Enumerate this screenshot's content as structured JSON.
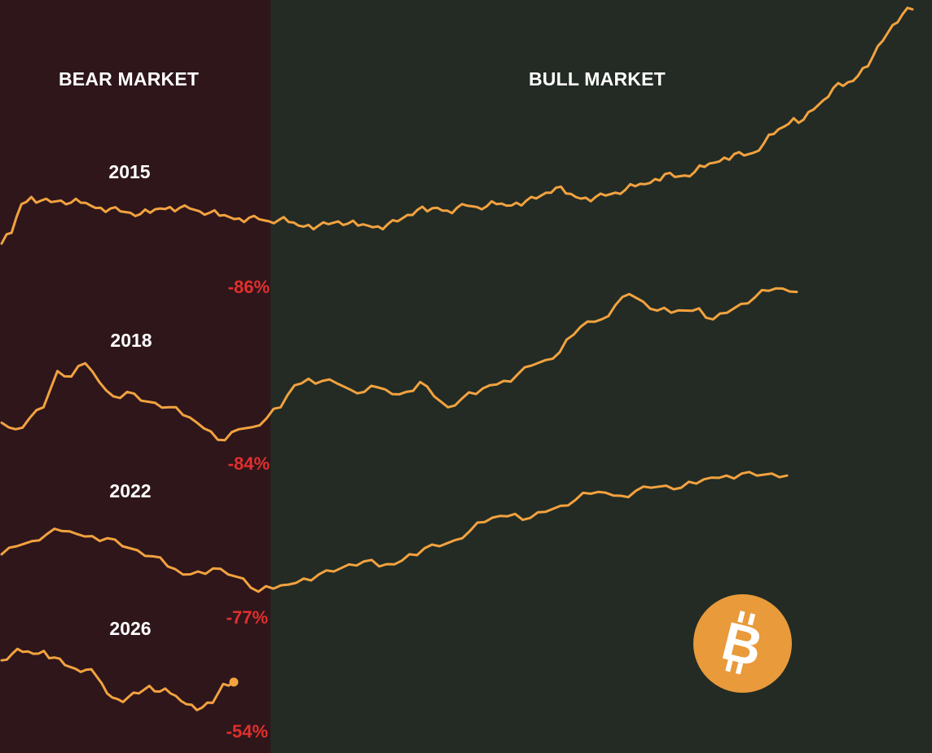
{
  "labels": {
    "bear": "BEAR MARKET",
    "bull": "BULL MARKET"
  },
  "logo": {
    "icon": "bitcoin-icon",
    "color": "#e99a3a",
    "glyph": "B"
  },
  "colors": {
    "bear_bg": "#2e161b",
    "bull_bg": "#232b24",
    "line": "#f2a23f",
    "drawdown": "#e0302d",
    "text": "#ffffff"
  },
  "chart_data": {
    "type": "line",
    "title": "",
    "xlabel": "",
    "ylabel": "",
    "grid": false,
    "series": [
      {
        "name": "2015",
        "drawdown": "-86%",
        "values": [
          0.35,
          0.5,
          0.9,
          1.0,
          0.95,
          0.93,
          0.95,
          0.92,
          0.92,
          0.88,
          0.85,
          0.84,
          0.8,
          0.78,
          0.76,
          0.78,
          0.84,
          0.86,
          0.85,
          0.84,
          0.8,
          0.78,
          0.74,
          0.72,
          0.7,
          0.71,
          0.69,
          0.66,
          0.68,
          0.65,
          0.6,
          0.61,
          0.6,
          0.62,
          0.66,
          0.63,
          0.6,
          0.6,
          0.59,
          0.62,
          0.66,
          0.75,
          0.82,
          0.8,
          0.85,
          0.81,
          0.85,
          0.88,
          0.86,
          0.87,
          0.9,
          0.88,
          0.92,
          0.95,
          0.98,
          1.06,
          1.13,
          1.05,
          1.0,
          0.99,
          1.0,
          1.02,
          1.06,
          1.1,
          1.15,
          1.18,
          1.25,
          1.32,
          1.28,
          1.3,
          1.35,
          1.42,
          1.48,
          1.55,
          1.6,
          1.58,
          1.62,
          1.75,
          1.88,
          1.98,
          2.1,
          2.08,
          2.22,
          2.35,
          2.52,
          2.55,
          2.62,
          2.8,
          2.96,
          3.18,
          3.4,
          3.55,
          3.62
        ]
      },
      {
        "name": "2018",
        "drawdown": "-84%",
        "values": [
          0.08,
          0.02,
          0.12,
          0.22,
          0.55,
          0.5,
          0.62,
          0.45,
          0.32,
          0.36,
          0.28,
          0.26,
          0.22,
          0.15,
          0.08,
          0.0,
          -0.08,
          0.02,
          0.04,
          0.12,
          0.22,
          0.42,
          0.48,
          0.46,
          0.44,
          0.38,
          0.36,
          0.4,
          0.34,
          0.36,
          0.45,
          0.32,
          0.22,
          0.3,
          0.34,
          0.42,
          0.46,
          0.52,
          0.6,
          0.65,
          0.72,
          0.88,
          1.0,
          1.02,
          1.15,
          1.25,
          1.18,
          1.1,
          1.08,
          1.1,
          1.12,
          1.02,
          1.08,
          1.16,
          1.22,
          1.28,
          1.3,
          1.27
        ]
      },
      {
        "name": "2022",
        "drawdown": "-77%",
        "values": [
          0.42,
          0.5,
          0.55,
          0.62,
          0.65,
          0.62,
          0.6,
          0.58,
          0.5,
          0.46,
          0.4,
          0.3,
          0.22,
          0.25,
          0.28,
          0.22,
          0.18,
          0.05,
          0.08,
          0.12,
          0.18,
          0.22,
          0.25,
          0.32,
          0.35,
          0.3,
          0.32,
          0.42,
          0.48,
          0.5,
          0.56,
          0.65,
          0.74,
          0.8,
          0.82,
          0.78,
          0.84,
          0.9,
          0.96,
          1.02,
          1.03,
          1.0,
          1.05,
          1.08,
          1.1,
          1.08,
          1.12,
          1.18,
          1.2,
          1.22,
          1.2,
          1.22,
          1.2
        ]
      },
      {
        "name": "2026",
        "drawdown": "-54%",
        "values": [
          0.55,
          0.62,
          0.64,
          0.62,
          0.65,
          0.58,
          0.5,
          0.46,
          0.45,
          0.38,
          0.2,
          0.14,
          0.16,
          0.2,
          0.28,
          0.22,
          0.2,
          0.12,
          0.08,
          0.05,
          0.1,
          0.3,
          0.32
        ]
      }
    ]
  }
}
